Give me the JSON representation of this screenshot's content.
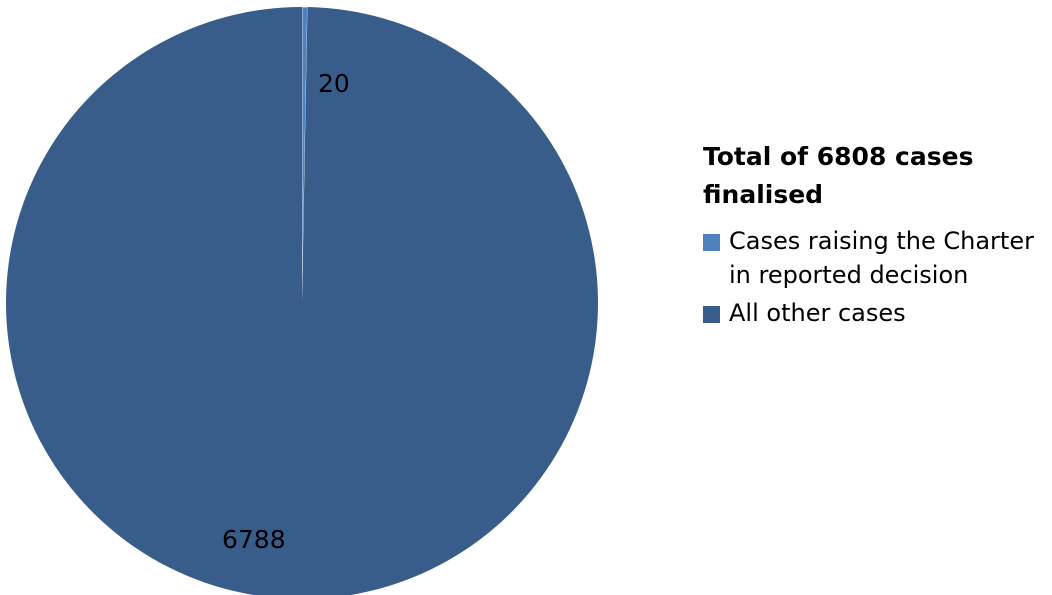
{
  "chart_data": {
    "type": "pie",
    "title": "Total of 6808 cases finalised",
    "legend_position": "right",
    "slices": [
      {
        "label": "Cases raising the Charter in reported decision",
        "value": 20,
        "display": "20",
        "color": "#4F81BD"
      },
      {
        "label": "All other cases",
        "value": 6788,
        "display": "6788",
        "color": "#385D8A"
      }
    ]
  }
}
